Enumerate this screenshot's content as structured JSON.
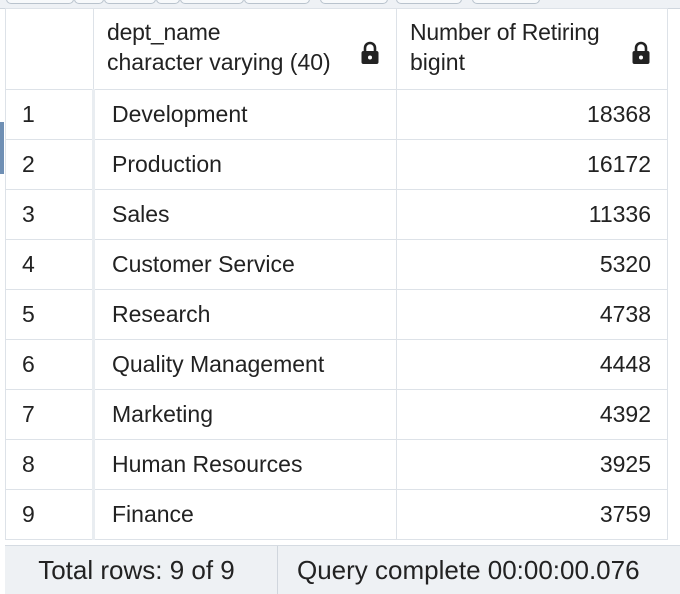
{
  "columns": [
    {
      "name": "",
      "type": ""
    },
    {
      "name": "dept_name",
      "type": "character varying (40)",
      "icon": "lock-icon"
    },
    {
      "name": "Number of Retiring",
      "type": "bigint",
      "icon": "lock-icon"
    }
  ],
  "rows": [
    {
      "num": "1",
      "dept_name": "Development",
      "retiring": "18368"
    },
    {
      "num": "2",
      "dept_name": "Production",
      "retiring": "16172"
    },
    {
      "num": "3",
      "dept_name": "Sales",
      "retiring": "11336"
    },
    {
      "num": "4",
      "dept_name": "Customer Service",
      "retiring": "5320"
    },
    {
      "num": "5",
      "dept_name": "Research",
      "retiring": "4738"
    },
    {
      "num": "6",
      "dept_name": "Quality Management",
      "retiring": "4448"
    },
    {
      "num": "7",
      "dept_name": "Marketing",
      "retiring": "4392"
    },
    {
      "num": "8",
      "dept_name": "Human Resources",
      "retiring": "3925"
    },
    {
      "num": "9",
      "dept_name": "Finance",
      "retiring": "3759"
    }
  ],
  "status": {
    "total_rows": "Total rows: 9 of 9",
    "query": "Query complete 00:00:00.076"
  },
  "colors": {
    "grid_border": "#dde2e8",
    "status_bg": "#eef1f4",
    "accent": "#6f8fb4"
  }
}
